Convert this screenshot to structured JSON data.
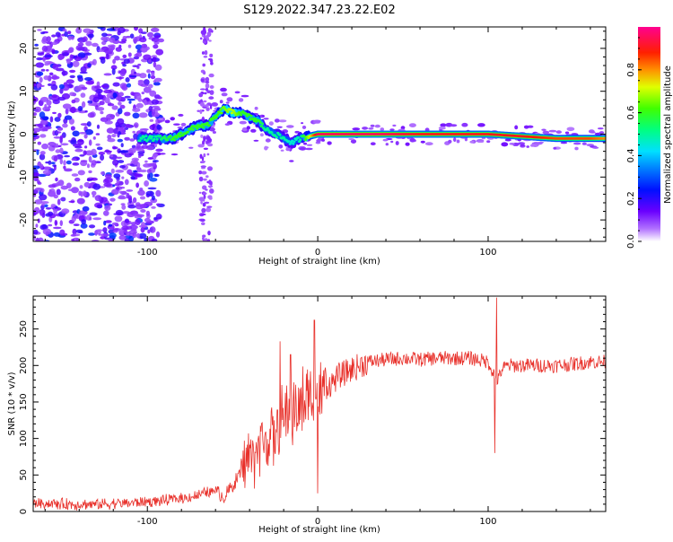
{
  "title": "S129.2022.347.23.22.E02",
  "colors": {
    "snr_line": "#e8302a",
    "spec_background": "#ffffff",
    "colormap": [
      "#ffffff",
      "#a000ff",
      "#5a00ff",
      "#0000ff",
      "#00c8ff",
      "#00ff60",
      "#ffff00",
      "#ff8000",
      "#ff0000",
      "#ff0090"
    ]
  },
  "chart_data": [
    {
      "type": "heatmap",
      "name": "spectrogram",
      "xlabel": "Height of straight line (km)",
      "ylabel": "Frequency (Hz)",
      "xlim": [
        -167,
        169
      ],
      "ylim": [
        -25,
        25
      ],
      "xticks": [
        -100,
        0,
        100
      ],
      "yticks": [
        -20,
        -10,
        0,
        10,
        20
      ],
      "grid": false,
      "colorbar": {
        "label": "Normalized spectral amplitude",
        "range": [
          0,
          1
        ],
        "ticks": [
          0.0,
          0.2,
          0.4,
          0.6,
          0.8
        ]
      },
      "ridge": {
        "description_free": true,
        "x": [
          -105,
          -95,
          -85,
          -80,
          -75,
          -70,
          -65,
          -60,
          -55,
          -50,
          -45,
          -40,
          -35,
          -30,
          -25,
          -20,
          -15,
          -10,
          -5,
          0,
          20,
          40,
          60,
          80,
          90,
          100,
          120,
          140,
          160,
          169
        ],
        "freq": [
          -1,
          -1,
          -1,
          0,
          1,
          2,
          2,
          4,
          6,
          5,
          5,
          4,
          3,
          1,
          0,
          -1,
          -2,
          -1,
          -0.5,
          0,
          0,
          0,
          0,
          0,
          0,
          0,
          -0.5,
          -1,
          -1,
          -1
        ],
        "peak_amplitude": [
          0.5,
          0.5,
          0.6,
          0.6,
          0.6,
          0.6,
          0.6,
          0.6,
          0.65,
          0.7,
          0.6,
          0.6,
          0.6,
          0.5,
          0.5,
          0.5,
          0.45,
          0.5,
          0.7,
          0.95,
          0.95,
          0.95,
          0.9,
          0.9,
          0.9,
          0.9,
          0.9,
          0.85,
          0.85,
          0.8
        ]
      }
    },
    {
      "type": "line",
      "name": "snr",
      "xlabel": "Height of straight line (km)",
      "ylabel": "SNR (10 * v/v)",
      "xlim": [
        -167,
        169
      ],
      "ylim": [
        0,
        295
      ],
      "xticks": [
        -100,
        0,
        100
      ],
      "yticks": [
        0,
        50,
        100,
        150,
        200,
        250
      ],
      "grid": false,
      "series": [
        {
          "x": [
            -167,
            -150,
            -130,
            -110,
            -90,
            -80,
            -70,
            -62,
            -58,
            -55,
            -50,
            -45,
            -42,
            -38,
            -34,
            -30,
            -25,
            -22,
            -20,
            -16,
            -12,
            -8,
            -4,
            0,
            4,
            8,
            12,
            16,
            20,
            25,
            30,
            40,
            50,
            60,
            70,
            80,
            90,
            100,
            104,
            106,
            108,
            112,
            120,
            130,
            140,
            150,
            160,
            169
          ],
          "y": [
            12,
            10,
            10,
            12,
            15,
            18,
            22,
            28,
            25,
            20,
            35,
            55,
            70,
            80,
            90,
            100,
            105,
            115,
            125,
            135,
            140,
            150,
            155,
            160,
            170,
            175,
            185,
            190,
            195,
            200,
            205,
            208,
            210,
            208,
            210,
            210,
            210,
            205,
            185,
            180,
            195,
            200,
            200,
            200,
            200,
            202,
            205,
            205
          ]
        }
      ],
      "spikes": [
        {
          "x": -22,
          "y": 233
        },
        {
          "x": -16,
          "y": 215
        },
        {
          "x": -2,
          "y": 262
        },
        {
          "x": 0,
          "y": 25
        },
        {
          "x": 104,
          "y": 80
        },
        {
          "x": 105,
          "y": 293
        }
      ]
    }
  ]
}
